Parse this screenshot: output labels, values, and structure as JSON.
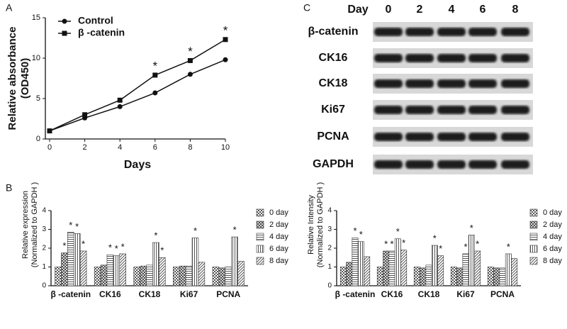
{
  "chart_data": [
    {
      "type": "line",
      "panel": "A",
      "xlabel": "Days",
      "ylabel": [
        "Relative absorbance",
        "(OD450)"
      ],
      "x": [
        0,
        2,
        4,
        6,
        8,
        10
      ],
      "xlim": [
        0,
        10
      ],
      "xticks": [
        0,
        2,
        4,
        6,
        8,
        10
      ],
      "ylim": [
        0,
        15
      ],
      "yticks": [
        0,
        5,
        10,
        15
      ],
      "series": [
        {
          "name": "Control",
          "color": "#111111",
          "marker": "circle",
          "values": [
            1,
            2.6,
            4,
            5.7,
            8,
            9.8
          ]
        },
        {
          "name": "β -catenin",
          "color": "#111111",
          "marker": "square",
          "values": [
            1,
            3,
            4.8,
            7.9,
            9.7,
            12.3
          ]
        }
      ],
      "annotations": [
        {
          "text": "*",
          "x": 6
        },
        {
          "text": "*",
          "x": 8
        },
        {
          "text": "*",
          "x": 10
        }
      ]
    },
    {
      "type": "bar",
      "panel": "B",
      "ylabel": [
        "Relative expression",
        "(Normalized to GAPDH  )"
      ],
      "categories": [
        "β -catenin",
        "CK16",
        "CK18",
        "Ki67",
        "PCNA"
      ],
      "ylim": [
        0,
        4
      ],
      "yticks": [
        0,
        1,
        2,
        3,
        4
      ],
      "series": [
        {
          "name": "0 day",
          "pattern": "checker",
          "values": [
            1,
            1,
            1,
            1,
            1
          ]
        },
        {
          "name": "2 day",
          "pattern": "cross",
          "values": [
            1.75,
            1.1,
            1.05,
            1.05,
            0.95
          ]
        },
        {
          "name": "4 day",
          "pattern": "hlines",
          "values": [
            2.85,
            1.65,
            1.1,
            1.05,
            1
          ]
        },
        {
          "name": "6 day",
          "pattern": "vlines",
          "values": [
            2.78,
            1.6,
            2.3,
            2.55,
            2.6
          ]
        },
        {
          "name": "8 day",
          "pattern": "diag",
          "values": [
            1.85,
            1.7,
            1.5,
            1.25,
            1.3
          ]
        }
      ],
      "annotations": [
        {
          "text": "*",
          "category": 0,
          "series": 1
        },
        {
          "text": "*",
          "category": 0,
          "series": 2
        },
        {
          "text": "*",
          "category": 0,
          "series": 3
        },
        {
          "text": "*",
          "category": 0,
          "series": 4
        },
        {
          "text": "*",
          "category": 1,
          "series": 2
        },
        {
          "text": "*",
          "category": 1,
          "series": 3
        },
        {
          "text": "*",
          "category": 1,
          "series": 4
        },
        {
          "text": "*",
          "category": 2,
          "series": 3
        },
        {
          "text": "*",
          "category": 2,
          "series": 4
        },
        {
          "text": "*",
          "category": 3,
          "series": 3
        },
        {
          "text": "*",
          "category": 4,
          "series": 3
        }
      ]
    },
    {
      "type": "bar",
      "ylabel": [
        "Relative Intensity",
        "(Normalized to GAPDH  )"
      ],
      "categories": [
        "β -catenin",
        "CK16",
        "CK18",
        "Ki67",
        "PCNA"
      ],
      "ylim": [
        0,
        4
      ],
      "yticks": [
        0,
        1,
        2,
        3,
        4
      ],
      "series": [
        {
          "name": "0 day",
          "pattern": "checker",
          "values": [
            1,
            1,
            1,
            1,
            1
          ]
        },
        {
          "name": "2 day",
          "pattern": "cross",
          "values": [
            1.25,
            1.85,
            0.95,
            0.95,
            0.95
          ]
        },
        {
          "name": "4 day",
          "pattern": "hlines",
          "values": [
            2.55,
            1.85,
            1.1,
            1.7,
            0.95
          ]
        },
        {
          "name": "6 day",
          "pattern": "vlines",
          "values": [
            2.35,
            2.5,
            2.15,
            2.7,
            1.7
          ]
        },
        {
          "name": "8 day",
          "pattern": "diag",
          "values": [
            1.55,
            1.9,
            1.6,
            1.85,
            1.45
          ]
        }
      ],
      "annotations": [
        {
          "text": "*",
          "category": 0,
          "series": 2
        },
        {
          "text": "*",
          "category": 0,
          "series": 3
        },
        {
          "text": "*",
          "category": 1,
          "series": 1
        },
        {
          "text": "*",
          "category": 1,
          "series": 2
        },
        {
          "text": "*",
          "category": 1,
          "series": 3
        },
        {
          "text": "*",
          "category": 1,
          "series": 4
        },
        {
          "text": "*",
          "category": 2,
          "series": 3
        },
        {
          "text": "*",
          "category": 2,
          "series": 4
        },
        {
          "text": "*",
          "category": 3,
          "series": 2
        },
        {
          "text": "*",
          "category": 3,
          "series": 3
        },
        {
          "text": "*",
          "category": 3,
          "series": 4
        },
        {
          "text": "*",
          "category": 4,
          "series": 3
        }
      ]
    }
  ],
  "blot": {
    "panel": "C",
    "header": "Day",
    "days": [
      "0",
      "2",
      "4",
      "6",
      "8"
    ],
    "rows": [
      "β-catenin",
      "CK16",
      "CK18",
      "Ki67",
      "PCNA",
      "GAPDH"
    ]
  }
}
